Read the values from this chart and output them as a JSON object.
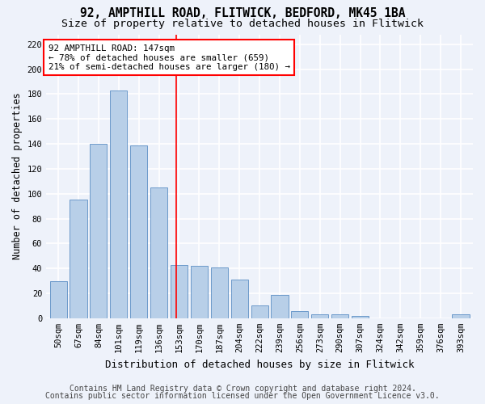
{
  "title1": "92, AMPTHILL ROAD, FLITWICK, BEDFORD, MK45 1BA",
  "title2": "Size of property relative to detached houses in Flitwick",
  "xlabel": "Distribution of detached houses by size in Flitwick",
  "ylabel": "Number of detached properties",
  "footer1": "Contains HM Land Registry data © Crown copyright and database right 2024.",
  "footer2": "Contains public sector information licensed under the Open Government Licence v3.0.",
  "categories": [
    "50sqm",
    "67sqm",
    "84sqm",
    "101sqm",
    "119sqm",
    "136sqm",
    "153sqm",
    "170sqm",
    "187sqm",
    "204sqm",
    "222sqm",
    "239sqm",
    "256sqm",
    "273sqm",
    "290sqm",
    "307sqm",
    "324sqm",
    "342sqm",
    "359sqm",
    "376sqm",
    "393sqm"
  ],
  "values": [
    30,
    95,
    140,
    183,
    139,
    105,
    43,
    42,
    41,
    31,
    10,
    19,
    6,
    3,
    3,
    2,
    0,
    0,
    0,
    0,
    3
  ],
  "bar_color": "#b8cfe8",
  "bar_edge_color": "#5b8ec4",
  "vline_x": 5.87,
  "vline_color": "red",
  "annotation_text": "92 AMPTHILL ROAD: 147sqm\n← 78% of detached houses are smaller (659)\n21% of semi-detached houses are larger (180) →",
  "annotation_box_color": "white",
  "annotation_box_edge": "red",
  "ylim": [
    0,
    228
  ],
  "yticks": [
    0,
    20,
    40,
    60,
    80,
    100,
    120,
    140,
    160,
    180,
    200,
    220
  ],
  "bg_color": "#eef2fa",
  "grid_color": "white",
  "title_fontsize": 10.5,
  "subtitle_fontsize": 9.5,
  "ylabel_fontsize": 8.5,
  "xlabel_fontsize": 9,
  "tick_fontsize": 7.5,
  "footer_fontsize": 7
}
